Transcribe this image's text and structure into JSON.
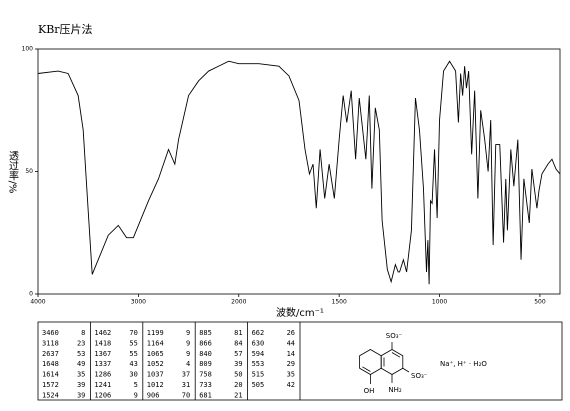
{
  "chart_data": {
    "type": "line",
    "title": "KBr压片法",
    "x_label": "波数/cm⁻¹",
    "y_label": "透过率/%",
    "color": "#000000",
    "x": [
      4000,
      3800,
      3700,
      3600,
      3550,
      3500,
      3460,
      3420,
      3300,
      3200,
      3118,
      3050,
      3000,
      2900,
      2800,
      2700,
      2637,
      2600,
      2500,
      2400,
      2300,
      2200,
      2100,
      2000,
      1900,
      1800,
      1750,
      1700,
      1670,
      1648,
      1630,
      1614,
      1595,
      1572,
      1550,
      1524,
      1500,
      1480,
      1462,
      1440,
      1418,
      1400,
      1367,
      1350,
      1337,
      1320,
      1300,
      1286,
      1260,
      1241,
      1220,
      1206,
      1199,
      1180,
      1164,
      1140,
      1120,
      1100,
      1080,
      1065,
      1058,
      1052,
      1045,
      1037,
      1025,
      1012,
      1000,
      980,
      950,
      920,
      906,
      895,
      885,
      875,
      866,
      855,
      840,
      825,
      809,
      795,
      775,
      758,
      745,
      733,
      720,
      700,
      681,
      670,
      662,
      645,
      630,
      610,
      594,
      580,
      553,
      540,
      515,
      505,
      490,
      460,
      440,
      420,
      400
    ],
    "values": [
      90,
      91,
      90,
      81,
      67,
      34,
      8,
      12,
      24,
      28,
      23,
      23,
      28,
      38,
      47,
      59,
      53,
      63,
      81,
      87,
      91,
      93,
      95,
      94,
      94,
      93,
      89,
      79,
      59,
      49,
      53,
      35,
      59,
      39,
      53,
      39,
      63,
      81,
      70,
      83,
      55,
      80,
      55,
      81,
      43,
      76,
      67,
      30,
      10,
      5,
      12,
      9,
      9,
      14,
      9,
      26,
      80,
      67,
      43,
      9,
      22,
      4,
      38,
      37,
      59,
      31,
      71,
      91,
      95,
      91,
      70,
      90,
      81,
      93,
      84,
      91,
      57,
      83,
      39,
      75,
      63,
      50,
      71,
      20,
      61,
      61,
      21,
      47,
      26,
      59,
      44,
      63,
      14,
      47,
      29,
      51,
      35,
      42,
      49,
      53,
      55,
      51,
      49
    ],
    "xlim": [
      4000,
      400
    ],
    "xticks": [
      4000,
      3000,
      2000,
      1500,
      1000,
      500
    ],
    "ylim": [
      0,
      100
    ],
    "yticks": [
      0,
      50,
      100
    ],
    "peak_table": [
      [
        [
          3460,
          8
        ],
        [
          3118,
          23
        ],
        [
          2637,
          53
        ],
        [
          1648,
          49
        ],
        [
          1614,
          35
        ],
        [
          1572,
          39
        ],
        [
          1524,
          39
        ]
      ],
      [
        [
          1462,
          70
        ],
        [
          1418,
          55
        ],
        [
          1367,
          55
        ],
        [
          1337,
          43
        ],
        [
          1286,
          30
        ],
        [
          1241,
          5
        ],
        [
          1206,
          9
        ]
      ],
      [
        [
          1199,
          9
        ],
        [
          1164,
          9
        ],
        [
          1065,
          9
        ],
        [
          1052,
          4
        ],
        [
          1037,
          37
        ],
        [
          1012,
          31
        ],
        [
          906,
          70
        ]
      ],
      [
        [
          885,
          81
        ],
        [
          866,
          84
        ],
        [
          840,
          57
        ],
        [
          809,
          39
        ],
        [
          758,
          50
        ],
        [
          733,
          20
        ],
        [
          681,
          21
        ]
      ],
      [
        [
          662,
          26
        ],
        [
          630,
          44
        ],
        [
          594,
          14
        ],
        [
          553,
          29
        ],
        [
          515,
          35
        ],
        [
          505,
          42
        ]
      ]
    ],
    "structure": {
      "top_group": "SO₃⁻",
      "right_group": "SO₃⁻",
      "amino": "NH₂",
      "hydroxy": "OH",
      "counter_ions": "Na⁺, H⁺ · H₂O"
    }
  }
}
